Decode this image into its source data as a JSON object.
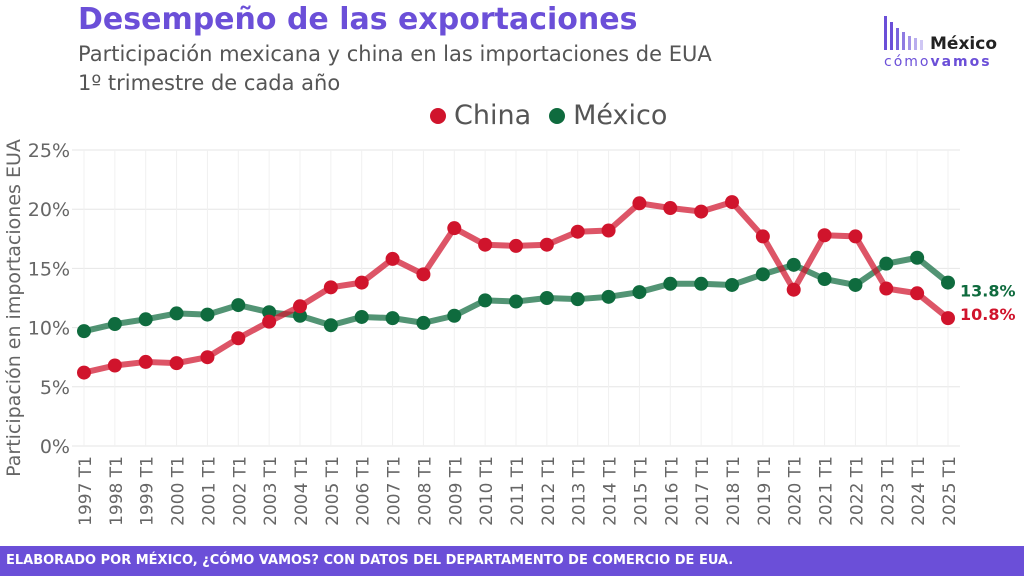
{
  "header": {
    "title": "Desempeño de las exportaciones",
    "subtitle_line1": "Participación mexicana y china en las importaciones de EUA",
    "subtitle_line2": "1º trimestre de cada año"
  },
  "logo": {
    "name": "México",
    "tagline_prefix": "cómo",
    "tagline_suffix": "vamos",
    "icon": "bar-mark-icon"
  },
  "footer": {
    "text": "ELABORADO POR MÉXICO, ¿CÓMO VAMOS? CON DATOS DEL DEPARTAMENTO DE COMERCIO DE EUA."
  },
  "colors": {
    "accent": "#6b4fd8",
    "china": "#d0142c",
    "mexico": "#0f6b3e"
  },
  "chart_data": {
    "type": "line",
    "title": "Desempeño de las exportaciones",
    "ylabel": "Participación en importaciones EUA",
    "xlabel": "",
    "ylim": [
      0,
      25
    ],
    "yticks": [
      "0%",
      "5%",
      "10%",
      "15%",
      "20%",
      "25%"
    ],
    "grid": true,
    "legend_position": "top-center",
    "categories": [
      "1997 T1",
      "1998 T1",
      "1999 T1",
      "2000 T1",
      "2001 T1",
      "2002 T1",
      "2003 T1",
      "2004 T1",
      "2005 T1",
      "2006 T1",
      "2007 T1",
      "2008 T1",
      "2009 T1",
      "2010 T1",
      "2011 T1",
      "2012 T1",
      "2013 T1",
      "2014 T1",
      "2015 T1",
      "2016 T1",
      "2017 T1",
      "2018 T1",
      "2019 T1",
      "2020 T1",
      "2021 T1",
      "2022 T1",
      "2023 T1",
      "2024 T1",
      "2025 T1"
    ],
    "series": [
      {
        "name": "China",
        "color": "#d0142c",
        "values": [
          6.2,
          6.8,
          7.1,
          7.0,
          7.5,
          9.1,
          10.5,
          11.8,
          13.4,
          13.8,
          15.8,
          14.5,
          18.4,
          17.0,
          16.9,
          17.0,
          18.1,
          18.2,
          20.5,
          20.1,
          19.8,
          20.6,
          17.7,
          13.2,
          17.8,
          17.7,
          13.3,
          12.9,
          10.8
        ],
        "end_label": "10.8%"
      },
      {
        "name": "México",
        "color": "#0f6b3e",
        "values": [
          9.7,
          10.3,
          10.7,
          11.2,
          11.1,
          11.9,
          11.3,
          11.0,
          10.2,
          10.9,
          10.8,
          10.4,
          11.0,
          12.3,
          12.2,
          12.5,
          12.4,
          12.6,
          13.0,
          13.7,
          13.7,
          13.6,
          14.5,
          15.3,
          14.1,
          13.6,
          15.4,
          15.9,
          13.8
        ],
        "end_label": "13.8%"
      }
    ]
  }
}
